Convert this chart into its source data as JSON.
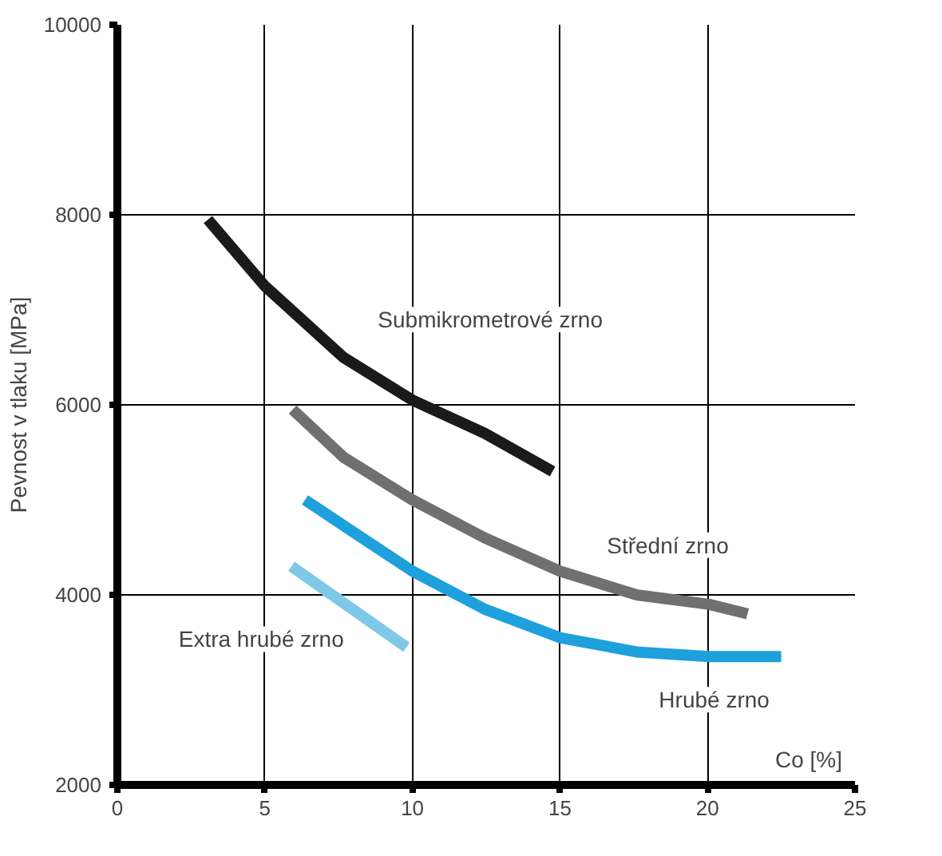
{
  "chart_data": {
    "type": "line",
    "xlabel": "Co [%]",
    "ylabel": "Pevnost v tlaku [MPa]",
    "xlim": [
      0,
      25
    ],
    "ylim": [
      2000,
      10000
    ],
    "xticks": [
      0,
      5,
      10,
      15,
      20,
      25
    ],
    "yticks": [
      2000,
      4000,
      6000,
      8000,
      10000
    ],
    "grid": true,
    "legend": false,
    "marker": "none",
    "line_style": "solid",
    "series": [
      {
        "name": "Submikrometrové zrno",
        "color": "#1a1a1a",
        "x": [
          3.07,
          5.0,
          7.66,
          10.0,
          12.45,
          14.75
        ],
        "values": [
          7950,
          7250,
          6500,
          6050,
          5700,
          5300
        ]
      },
      {
        "name": "Střední zrno",
        "color": "#707070",
        "x": [
          5.94,
          7.66,
          10.0,
          12.45,
          15.0,
          17.6,
          20.06,
          21.36
        ],
        "values": [
          5950,
          5450,
          5000,
          4600,
          4250,
          4000,
          3900,
          3800
        ]
      },
      {
        "name": "Hrubé zrno",
        "color": "#1ea0dc",
        "x": [
          6.36,
          8.05,
          10.0,
          12.45,
          15.0,
          17.6,
          20.06,
          22.5
        ],
        "values": [
          5000,
          4650,
          4250,
          3850,
          3550,
          3400,
          3350,
          3350
        ]
      },
      {
        "name": "Extra hrubé zrno",
        "color": "#7ec8e8",
        "x": [
          5.9,
          9.8
        ],
        "values": [
          4300,
          3450
        ]
      }
    ]
  }
}
